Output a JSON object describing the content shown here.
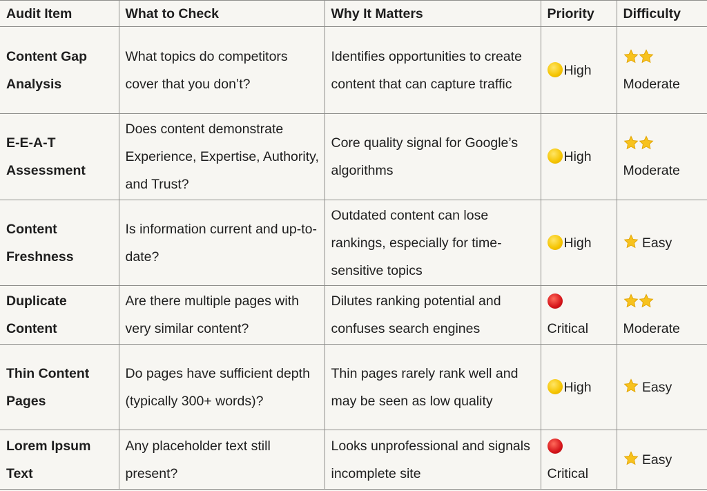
{
  "columns": [
    "Audit Item",
    "What to Check",
    "Why It Matters",
    "Priority",
    "Difficulty"
  ],
  "colors": {
    "background": "#f7f6f2",
    "border": "#8f8f8c",
    "high": "#f5c400",
    "critical": "#d5141a",
    "star": "#f7c21e"
  },
  "rows": [
    {
      "item": "Content Gap Analysis",
      "check": "What topics do competitors cover that you don’t?",
      "why": "Identifies opportunities to create content that can capture traffic",
      "priority": "High",
      "priority_icon": "yellow-circle",
      "stars": 2,
      "difficulty": "Moderate"
    },
    {
      "item": "E-E-A-T Assessment",
      "check": "Does content demonstrate Experience, Expertise, Authority, and Trust?",
      "why": "Core quality signal for Google’s algorithms",
      "priority": "High",
      "priority_icon": "yellow-circle",
      "stars": 2,
      "difficulty": "Moderate"
    },
    {
      "item": "Content Freshness",
      "check": "Is information current and up-to-date?",
      "why": "Outdated content can lose rankings, especially for time-sensitive topics",
      "priority": "High",
      "priority_icon": "yellow-circle",
      "stars": 1,
      "difficulty": "Easy"
    },
    {
      "item": "Duplicate Content",
      "check": "Are there multiple pages with very similar content?",
      "why": "Dilutes ranking potential and confuses search engines",
      "priority": "Critical",
      "priority_icon": "red-circle",
      "stars": 2,
      "difficulty": "Moderate"
    },
    {
      "item": "Thin Content Pages",
      "check": "Do pages have sufficient depth (typically 300+ words)?",
      "why": "Thin pages rarely rank well and may be seen as low quality",
      "priority": "High",
      "priority_icon": "yellow-circle",
      "stars": 1,
      "difficulty": "Easy"
    },
    {
      "item": "Lorem Ipsum Text",
      "check": "Any placeholder text still present?",
      "why": "Looks unprofessional and signals incomplete site",
      "priority": "Critical",
      "priority_icon": "red-circle",
      "stars": 1,
      "difficulty": "Easy"
    }
  ]
}
